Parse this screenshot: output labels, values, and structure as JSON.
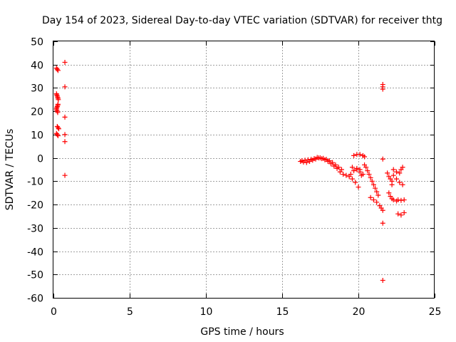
{
  "chart_data": {
    "type": "scatter",
    "title": "Day 154 of 2023, Sidereal Day-to-day VTEC variation (SDTVAR) for receiver thtg",
    "xlabel": "GPS time / hours",
    "ylabel": "SDTVAR / TECUs",
    "xlim": [
      0,
      25
    ],
    "ylim": [
      -60,
      50
    ],
    "xticks": [
      0,
      5,
      10,
      15,
      20,
      25
    ],
    "yticks": [
      -60,
      -50,
      -40,
      -30,
      -20,
      -10,
      0,
      10,
      20,
      30,
      40,
      50
    ],
    "xtick_labels": [
      "0",
      "5",
      "10",
      "15",
      "20",
      "25"
    ],
    "ytick_labels": [
      "-60",
      "-50",
      "-40",
      "-30",
      "-20",
      "-10",
      "0",
      "10",
      "20",
      "30",
      "40",
      "50"
    ],
    "grid": true,
    "marker": "+",
    "color": "#ff0000",
    "series": [
      {
        "name": "SDTVAR",
        "points": [
          [
            0.2,
            38.5
          ],
          [
            0.25,
            38.0
          ],
          [
            0.3,
            37.5
          ],
          [
            0.75,
            41.0
          ],
          [
            0.75,
            30.5
          ],
          [
            0.2,
            27.5
          ],
          [
            0.22,
            27.0
          ],
          [
            0.25,
            26.5
          ],
          [
            0.28,
            26.0
          ],
          [
            0.3,
            25.5
          ],
          [
            0.32,
            25.0
          ],
          [
            0.3,
            23.0
          ],
          [
            0.28,
            22.5
          ],
          [
            0.25,
            22.0
          ],
          [
            0.22,
            21.5
          ],
          [
            0.2,
            21.0
          ],
          [
            0.22,
            20.5
          ],
          [
            0.25,
            20.0
          ],
          [
            0.28,
            19.5
          ],
          [
            0.75,
            17.5
          ],
          [
            0.25,
            13.5
          ],
          [
            0.3,
            13.0
          ],
          [
            0.35,
            12.5
          ],
          [
            0.2,
            10.5
          ],
          [
            0.25,
            10.0
          ],
          [
            0.3,
            9.5
          ],
          [
            0.75,
            10.0
          ],
          [
            0.75,
            7.0
          ],
          [
            0.75,
            -7.5
          ],
          [
            16.2,
            -1.5
          ],
          [
            16.4,
            -1.8
          ],
          [
            16.6,
            -2.0
          ],
          [
            16.8,
            -1.5
          ],
          [
            17.0,
            -1.0
          ],
          [
            17.2,
            -0.5
          ],
          [
            17.4,
            0.0
          ],
          [
            17.6,
            -0.3
          ],
          [
            17.8,
            -0.8
          ],
          [
            18.0,
            -1.5
          ],
          [
            18.2,
            -2.5
          ],
          [
            18.4,
            -3.5
          ],
          [
            18.6,
            -4.5
          ],
          [
            18.8,
            -6.0
          ],
          [
            19.0,
            -7.0
          ],
          [
            16.3,
            -1.2
          ],
          [
            16.5,
            -1.0
          ],
          [
            16.7,
            -0.8
          ],
          [
            16.9,
            -0.6
          ],
          [
            17.1,
            -0.3
          ],
          [
            17.3,
            0.2
          ],
          [
            17.5,
            0.0
          ],
          [
            17.7,
            -0.2
          ],
          [
            17.9,
            -0.6
          ],
          [
            18.1,
            -1.2
          ],
          [
            18.3,
            -2.0
          ],
          [
            18.5,
            -3.0
          ],
          [
            18.7,
            -4.0
          ],
          [
            18.9,
            -5.0
          ],
          [
            19.2,
            -7.5
          ],
          [
            19.4,
            -8.0
          ],
          [
            19.6,
            -9.0
          ],
          [
            19.8,
            -10.5
          ],
          [
            20.0,
            -12.5
          ],
          [
            19.5,
            -7.0
          ],
          [
            19.7,
            -5.5
          ],
          [
            19.9,
            -5.0
          ],
          [
            20.1,
            -6.0
          ],
          [
            20.2,
            -7.5
          ],
          [
            19.6,
            -4.0
          ],
          [
            19.9,
            -4.5
          ],
          [
            20.1,
            -5.0
          ],
          [
            20.3,
            -7.0
          ],
          [
            19.7,
            1.0
          ],
          [
            19.9,
            1.5
          ],
          [
            20.1,
            1.5
          ],
          [
            20.3,
            1.0
          ],
          [
            20.4,
            0.5
          ],
          [
            20.4,
            -3.0
          ],
          [
            20.5,
            -4.0
          ],
          [
            20.6,
            -5.5
          ],
          [
            20.7,
            -7.0
          ],
          [
            20.8,
            -8.5
          ],
          [
            20.9,
            -10.0
          ],
          [
            21.0,
            -11.5
          ],
          [
            21.1,
            -13.0
          ],
          [
            21.2,
            -14.5
          ],
          [
            21.3,
            -16.0
          ],
          [
            20.8,
            -17.0
          ],
          [
            21.0,
            -18.0
          ],
          [
            21.2,
            -19.0
          ],
          [
            21.4,
            -20.5
          ],
          [
            21.5,
            -21.5
          ],
          [
            21.6,
            -22.5
          ],
          [
            21.6,
            -28.0
          ],
          [
            21.6,
            -52.5
          ],
          [
            21.6,
            31.5
          ],
          [
            21.6,
            30.5
          ],
          [
            21.6,
            29.5
          ],
          [
            21.6,
            -0.5
          ],
          [
            21.9,
            -6.5
          ],
          [
            22.0,
            -8.0
          ],
          [
            22.1,
            -9.0
          ],
          [
            22.2,
            -10.0
          ],
          [
            22.2,
            -11.5
          ],
          [
            22.0,
            -15.0
          ],
          [
            22.1,
            -16.5
          ],
          [
            22.2,
            -17.5
          ],
          [
            22.3,
            -18.0
          ],
          [
            22.5,
            -18.5
          ],
          [
            22.3,
            -5.0
          ],
          [
            22.5,
            -6.0
          ],
          [
            22.7,
            -6.5
          ],
          [
            22.8,
            -5.0
          ],
          [
            22.9,
            -4.0
          ],
          [
            22.3,
            -7.5
          ],
          [
            22.5,
            -9.0
          ],
          [
            22.7,
            -10.5
          ],
          [
            22.9,
            -11.5
          ],
          [
            22.6,
            -18.0
          ],
          [
            22.8,
            -18.2
          ],
          [
            23.0,
            -18.0
          ],
          [
            22.6,
            -24.0
          ],
          [
            22.8,
            -24.5
          ],
          [
            23.0,
            -23.5
          ]
        ]
      }
    ]
  }
}
